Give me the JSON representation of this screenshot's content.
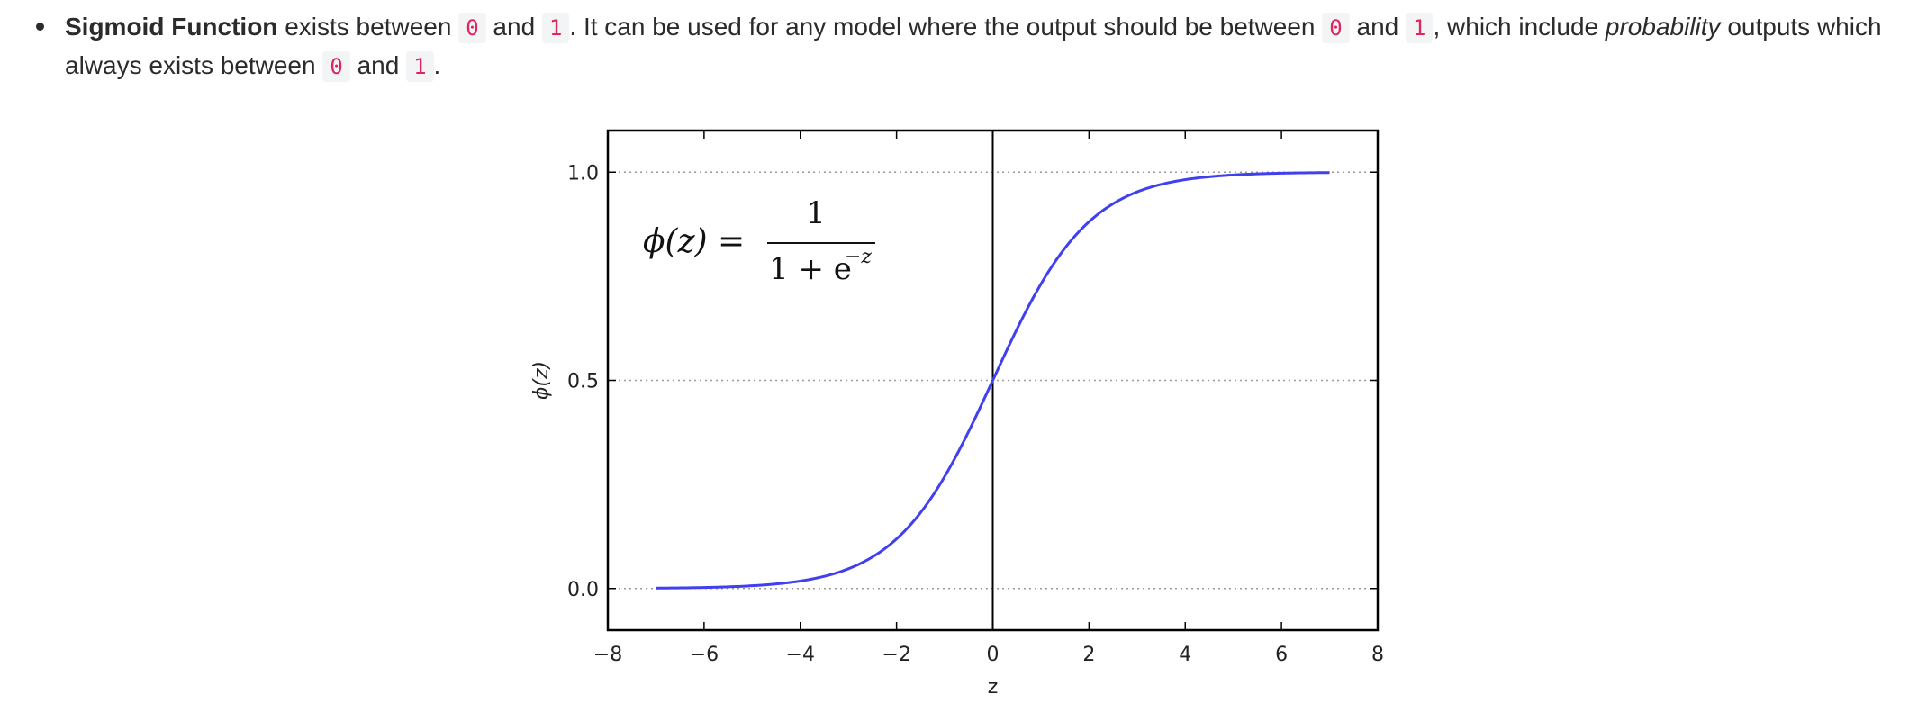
{
  "bullet": {
    "term": "Sigmoid Function",
    "text_1": " exists between ",
    "code_0": "0",
    "and_1": " and ",
    "code_1": "1",
    "text_2": ". It can be used for any model where the output should be between ",
    "code_0b": "0",
    "and_2": " and ",
    "code_1b": "1",
    "text_3": ", which include ",
    "emphasis": "probability",
    "text_4": " outputs which always exists between ",
    "code_0c": "0",
    "and_3": " and ",
    "code_1c": "1",
    "text_5": "."
  },
  "chart_data": {
    "type": "line",
    "title": "",
    "xlabel": "z",
    "ylabel": "ϕ(z)",
    "xlim": [
      -8,
      8
    ],
    "ylim": [
      -0.1,
      1.1
    ],
    "xticks": [
      -8,
      -6,
      -4,
      -2,
      0,
      2,
      4,
      6,
      8
    ],
    "xtick_labels": [
      "−8",
      "−6",
      "−4",
      "−2",
      "0",
      "2",
      "4",
      "6",
      "8"
    ],
    "yticks": [
      0.0,
      0.5,
      1.0
    ],
    "ytick_labels": [
      "0.0",
      "0.5",
      "1.0"
    ],
    "grid": "dotted horizontal lines at y ticks",
    "vertical_line_x": 0,
    "annotation": {
      "lhs": "ϕ(z) =",
      "numerator": "1",
      "denominator_base": "1 + e",
      "denominator_exp": "−z"
    },
    "series": [
      {
        "color": "#4040f0",
        "function": "1 / (1 + exp(-z))",
        "x": [
          -7,
          -6,
          -5,
          -4,
          -3,
          -2,
          -1,
          0,
          1,
          2,
          3,
          4,
          5,
          6,
          7
        ],
        "y": [
          0.0009,
          0.0025,
          0.0067,
          0.018,
          0.047,
          0.119,
          0.269,
          0.5,
          0.731,
          0.881,
          0.953,
          0.982,
          0.9933,
          0.9975,
          0.9991
        ]
      }
    ]
  }
}
